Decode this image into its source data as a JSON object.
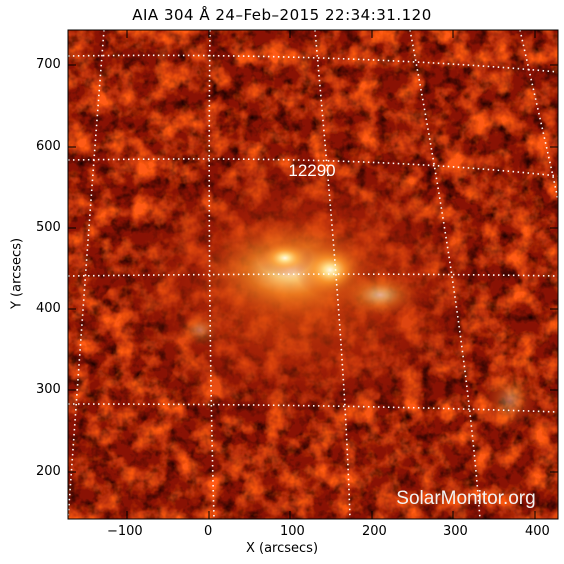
{
  "title": "AIA 304 Å 24–Feb–2015 22:34:31.120",
  "x_axis": {
    "label": "X (arcsecs)",
    "ticks": [
      "−100",
      "0",
      "100",
      "200",
      "300",
      "400"
    ]
  },
  "y_axis": {
    "label": "Y (arcsecs)",
    "ticks": [
      "700",
      "600",
      "500",
      "400",
      "300",
      "200"
    ]
  },
  "region_label": "12290",
  "watermark": "SolarMonitor.org",
  "colors": {
    "background": "#ffffff",
    "image_dark": "#2a0200",
    "image_mid": "#9a1404",
    "image_bright": "#ff9a2a",
    "image_core": "#fff6da",
    "grid": "#ffffff"
  }
}
